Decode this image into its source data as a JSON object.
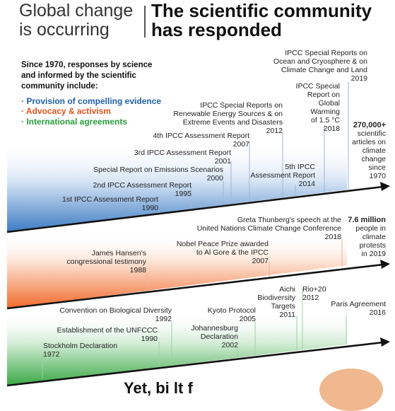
{
  "header": {
    "left_title": [
      "Global change",
      "is occurring"
    ],
    "right_title": [
      "The scientific community",
      "has responded"
    ]
  },
  "intro": [
    "Since 1970, responses by science",
    "and informed by the scientific",
    "community include:"
  ],
  "legend": [
    {
      "label": "· Provision of compelling evidence",
      "color": "#1f5fa8"
    },
    {
      "label": "· Advocacy & activism",
      "color": "#e2531c"
    },
    {
      "label": "· International agreements",
      "color": "#2a9c3c"
    }
  ],
  "band_colors": {
    "blue": "#3d7cc4",
    "orange": "#f06a2c",
    "green": "#39a845"
  },
  "band1": {
    "events": [
      {
        "text": [
          "1st IPCC Assessment Report",
          "1990"
        ]
      },
      {
        "text": [
          "2nd IPCC Assessment Report",
          "1995"
        ]
      },
      {
        "text": [
          "Special Report on Emissions Scenarios",
          "2000"
        ]
      },
      {
        "text": [
          "3rd IPCC Assessment Report",
          "2001"
        ]
      },
      {
        "text": [
          "4th IPCC Assessment Report",
          "2007"
        ]
      },
      {
        "text": [
          "IPCC Special Reports on",
          "Renewable Energy Sources & on",
          "Extreme Events and Disasters",
          "2012"
        ]
      },
      {
        "text": [
          "5th IPCC",
          "Assessment Report",
          "2014"
        ]
      },
      {
        "text": [
          "IPCC Special",
          "Report on",
          "Global",
          "Warming",
          "of 1.5 °C",
          "2018"
        ]
      },
      {
        "text": [
          "IPCC Special Reports on",
          "Ocean and Cryosphere & on",
          "Climate Change and Land",
          "2019"
        ]
      }
    ],
    "stat": {
      "number": "270,000+",
      "text": [
        "scientific",
        "articles on",
        "climate",
        "change",
        "since",
        "1970"
      ]
    }
  },
  "band2": {
    "events": [
      {
        "text": [
          "James Hansen's",
          "congressional testimony",
          "1988"
        ]
      },
      {
        "text": [
          "Nobel Peace Prize awarded",
          "to Al Gore & the IPCC",
          "2007"
        ]
      },
      {
        "text": [
          "Greta Thunberg's speech at the",
          "United Nations Climate Change Conference",
          "2018"
        ]
      }
    ],
    "stat": {
      "number": "7.6 million",
      "text": [
        "people in",
        "climate",
        "protests",
        "in 2019"
      ]
    }
  },
  "band3": {
    "events": [
      {
        "text": [
          "Stockholm Declaration",
          "1972"
        ]
      },
      {
        "text": [
          "Establishment of the UNFCCC",
          "1990"
        ]
      },
      {
        "text": [
          "Convention on Biological Diversity",
          "1992"
        ]
      },
      {
        "text": [
          "Johannesburg",
          "Declaration",
          "2002"
        ]
      },
      {
        "text": [
          "Kyoto Protocol",
          "2005"
        ]
      },
      {
        "text": [
          "Aichi",
          "Biodiversity",
          "Targets",
          "2011"
        ]
      },
      {
        "text": [
          "Rio+20",
          "2012"
        ]
      },
      {
        "text": [
          "Paris Agreement",
          "2016"
        ]
      }
    ]
  },
  "bottom_text": "Yet, bi  lt    f"
}
